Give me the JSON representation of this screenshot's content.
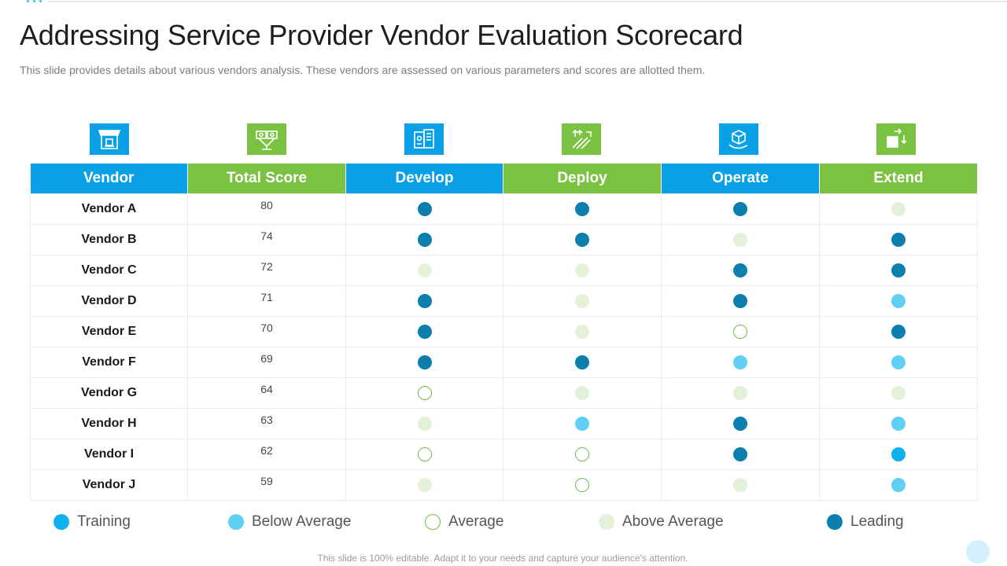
{
  "title": "Addressing Service Provider Vendor Evaluation Scorecard",
  "subtitle": "This slide provides details about various vendors analysis. These vendors are assessed on various parameters and scores are allotted them.",
  "colors": {
    "blue_header": "#0aa0e6",
    "green_header": "#7cc242",
    "training": "#0db2ec",
    "below_average": "#5fd0f4",
    "average_outline": "#6cbf44",
    "above_average": "#e3f1d8",
    "leading": "#0c7fae"
  },
  "columns": [
    {
      "label": "Vendor",
      "icon": "shop-icon",
      "style": "blue"
    },
    {
      "label": "Total Score",
      "icon": "money-board-icon",
      "style": "green"
    },
    {
      "label": "Develop",
      "icon": "server-icon",
      "style": "blue"
    },
    {
      "label": "Deploy",
      "icon": "arrows-icon",
      "style": "green"
    },
    {
      "label": "Operate",
      "icon": "cube-hand-icon",
      "style": "blue"
    },
    {
      "label": "Extend",
      "icon": "extend-box-icon",
      "style": "green"
    }
  ],
  "rows": [
    {
      "vendor": "Vendor A",
      "score": "80",
      "develop": "leading",
      "deploy": "leading",
      "operate": "leading",
      "extend": "above"
    },
    {
      "vendor": "Vendor B",
      "score": "74",
      "develop": "leading",
      "deploy": "leading",
      "operate": "above",
      "extend": "leading"
    },
    {
      "vendor": "Vendor C",
      "score": "72",
      "develop": "above",
      "deploy": "above",
      "operate": "leading",
      "extend": "leading"
    },
    {
      "vendor": "Vendor D",
      "score": "71",
      "develop": "leading",
      "deploy": "above",
      "operate": "leading",
      "extend": "below"
    },
    {
      "vendor": "Vendor E",
      "score": "70",
      "develop": "leading",
      "deploy": "above",
      "operate": "average",
      "extend": "leading"
    },
    {
      "vendor": "Vendor F",
      "score": "69",
      "develop": "leading",
      "deploy": "leading",
      "operate": "below",
      "extend": "below"
    },
    {
      "vendor": "Vendor G",
      "score": "64",
      "develop": "average",
      "deploy": "above",
      "operate": "above",
      "extend": "above"
    },
    {
      "vendor": "Vendor H",
      "score": "63",
      "develop": "above",
      "deploy": "below",
      "operate": "leading",
      "extend": "below"
    },
    {
      "vendor": "Vendor I",
      "score": "62",
      "develop": "average",
      "deploy": "average",
      "operate": "leading",
      "extend": "training"
    },
    {
      "vendor": "Vendor J",
      "score": "59",
      "develop": "above",
      "deploy": "average",
      "operate": "above",
      "extend": "below"
    }
  ],
  "legend": [
    {
      "key": "training",
      "label": "Training"
    },
    {
      "key": "below",
      "label": "Below Average"
    },
    {
      "key": "average",
      "label": "Average"
    },
    {
      "key": "above",
      "label": "Above Average"
    },
    {
      "key": "leading",
      "label": "Leading"
    }
  ],
  "footer": "This slide is 100% editable. Adapt it to your needs and capture your audience's attention."
}
